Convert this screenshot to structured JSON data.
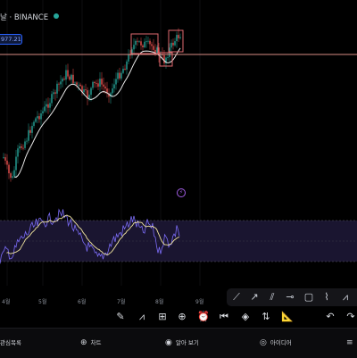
{
  "header": {
    "title": "날 · BINANCE",
    "price_label": "977.21"
  },
  "colors": {
    "up": "#26a69a",
    "down": "#ef5350",
    "ma": "#e8e8e8",
    "rsi": "#7b6cf6",
    "rsi_ma": "#f2e6a0",
    "rsi_band": "#1a1530",
    "hline": "#d98b85",
    "box": "#e06a70"
  },
  "months": {
    "m4": "4월",
    "m5": "5월",
    "m6": "6월",
    "m7": "7월",
    "m8": "8월",
    "m9": "9월"
  },
  "drawing_tools": [
    {
      "icon": "trend-line-icon"
    },
    {
      "icon": "ray-icon"
    },
    {
      "icon": "parallel-channel-icon"
    },
    {
      "icon": "horizontal-ray-icon"
    },
    {
      "icon": "rectangle-icon"
    },
    {
      "icon": "path-icon"
    },
    {
      "icon": "zigzag-icon"
    }
  ],
  "toolbar": [
    {
      "icon": "brush-icon"
    },
    {
      "icon": "chart-pattern-icon"
    },
    {
      "icon": "measure-icon"
    },
    {
      "icon": "add-icon"
    },
    {
      "icon": "alarm-icon"
    },
    {
      "icon": "rewind-icon"
    },
    {
      "icon": "layers-icon"
    },
    {
      "icon": "long-position-icon"
    },
    {
      "icon": "ruler-icon"
    },
    {
      "icon": "undo-icon"
    },
    {
      "icon": "redo-icon"
    }
  ],
  "nav": {
    "watchlist": "관심목록",
    "chart": "차트",
    "explore": "알아 보기",
    "ideas": "아이디어"
  }
}
